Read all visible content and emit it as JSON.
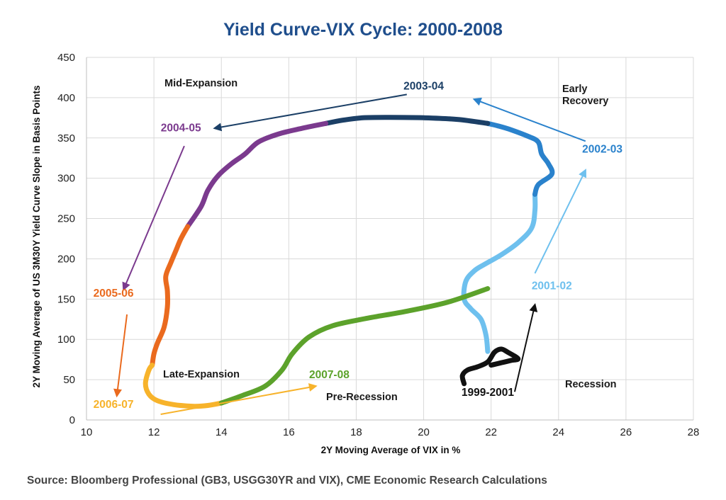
{
  "chart_data": {
    "type": "line",
    "title": "Yield Curve-VIX Cycle: 2000-2008",
    "xlabel": "2Y Moving Average of VIX in %",
    "ylabel": "2Y Moving Average of US 3M30Y Yield Curve Slope in Basis Points",
    "xlim": [
      10,
      28
    ],
    "ylim": [
      0,
      450
    ],
    "x_ticks": [
      "10",
      "12",
      "14",
      "16",
      "18",
      "20",
      "22",
      "24",
      "26",
      "28"
    ],
    "y_ticks": [
      "0",
      "50",
      "100",
      "150",
      "200",
      "250",
      "300",
      "350",
      "400",
      "450"
    ],
    "grid": true,
    "source": "Source: Bloomberg Professional (GB3, USGG30YR and VIX), CME Economic Research Calculations",
    "phases": [
      "Mid-Expansion",
      "Early",
      "Recovery",
      "Late-Expansion",
      "Pre-Recession",
      "Recession"
    ],
    "colors": {
      "title": "#1f4e8c",
      "1999-2001": "#111111",
      "2001-02": "#6ec0ee",
      "2002-03": "#2a82cc",
      "2003-04": "#1b3f66",
      "2004-05": "#7b3a8e",
      "2005-06": "#ea6a1e",
      "2006-07": "#f7b32b",
      "2007-08": "#5ca22b"
    },
    "series": [
      {
        "name": "1999-2001",
        "points": [
          [
            21.2,
            45
          ],
          [
            21.15,
            55
          ],
          [
            21.3,
            62
          ],
          [
            21.6,
            66
          ],
          [
            21.9,
            72
          ],
          [
            22.1,
            84
          ],
          [
            22.3,
            88
          ],
          [
            22.5,
            84
          ],
          [
            22.8,
            76
          ],
          [
            22.6,
            74
          ],
          [
            22.3,
            71
          ],
          [
            22.0,
            68
          ]
        ]
      },
      {
        "name": "2001-02",
        "points": [
          [
            21.9,
            85
          ],
          [
            21.85,
            105
          ],
          [
            21.7,
            125
          ],
          [
            21.4,
            138
          ],
          [
            21.2,
            150
          ],
          [
            21.25,
            172
          ],
          [
            21.5,
            185
          ],
          [
            21.8,
            193
          ],
          [
            22.3,
            205
          ],
          [
            22.8,
            220
          ],
          [
            23.2,
            238
          ],
          [
            23.3,
            260
          ],
          [
            23.3,
            280
          ]
        ]
      },
      {
        "name": "2002-03",
        "points": [
          [
            23.3,
            280
          ],
          [
            23.4,
            292
          ],
          [
            23.8,
            305
          ],
          [
            23.7,
            318
          ],
          [
            23.5,
            330
          ],
          [
            23.4,
            345
          ],
          [
            23.1,
            352
          ],
          [
            22.6,
            360
          ],
          [
            22.2,
            365
          ],
          [
            21.9,
            368
          ]
        ]
      },
      {
        "name": "2003-04",
        "points": [
          [
            21.9,
            368
          ],
          [
            21.0,
            373
          ],
          [
            20.0,
            375
          ],
          [
            19.0,
            375.5
          ],
          [
            18.2,
            375
          ],
          [
            17.6,
            372
          ],
          [
            17.1,
            368
          ]
        ]
      },
      {
        "name": "2004-05",
        "points": [
          [
            17.1,
            368
          ],
          [
            16.4,
            362
          ],
          [
            15.7,
            355
          ],
          [
            15.1,
            345
          ],
          [
            14.7,
            330
          ],
          [
            14.3,
            318
          ],
          [
            13.9,
            303
          ],
          [
            13.6,
            285
          ],
          [
            13.4,
            265
          ],
          [
            13.0,
            240
          ]
        ]
      },
      {
        "name": "2005-06",
        "points": [
          [
            13.0,
            240
          ],
          [
            12.8,
            225
          ],
          [
            12.65,
            210
          ],
          [
            12.5,
            195
          ],
          [
            12.35,
            178
          ],
          [
            12.4,
            160
          ],
          [
            12.4,
            140
          ],
          [
            12.3,
            115
          ],
          [
            12.1,
            95
          ],
          [
            12.0,
            82
          ],
          [
            11.95,
            68
          ]
        ]
      },
      {
        "name": "2006-07",
        "points": [
          [
            11.95,
            68
          ],
          [
            11.85,
            62
          ],
          [
            11.75,
            45
          ],
          [
            11.85,
            32
          ],
          [
            12.1,
            24
          ],
          [
            12.6,
            19
          ],
          [
            13.2,
            17
          ],
          [
            13.6,
            18
          ],
          [
            14.0,
            21
          ]
        ]
      },
      {
        "name": "2007-08",
        "points": [
          [
            14.0,
            21
          ],
          [
            14.6,
            30
          ],
          [
            15.3,
            42
          ],
          [
            15.8,
            62
          ],
          [
            16.1,
            82
          ],
          [
            16.6,
            103
          ],
          [
            17.3,
            117
          ],
          [
            18.3,
            126
          ],
          [
            19.5,
            135
          ],
          [
            20.7,
            146
          ],
          [
            21.9,
            163
          ]
        ]
      }
    ],
    "annotations": [
      {
        "text": "2003-04",
        "x": 20.0,
        "y": 410,
        "arrow_from": [
          19.5,
          404
        ],
        "arrow_to": [
          13.8,
          362
        ]
      },
      {
        "text": "2002-03",
        "x": 25.3,
        "y": 332,
        "arrow_from": [
          24.8,
          346
        ],
        "arrow_to": [
          21.5,
          398
        ]
      },
      {
        "text": "2004-05",
        "x": 12.8,
        "y": 358,
        "arrow_from": [
          12.9,
          340
        ],
        "arrow_to": [
          11.1,
          162
        ]
      },
      {
        "text": "2005-06",
        "x": 10.8,
        "y": 153,
        "arrow_from": [
          11.2,
          131
        ],
        "arrow_to": [
          10.9,
          30
        ]
      },
      {
        "text": "2006-07",
        "x": 10.8,
        "y": 15,
        "arrow_from": [
          12.2,
          7
        ],
        "arrow_to": [
          16.8,
          42
        ]
      },
      {
        "text": "2007-08",
        "x": 17.2,
        "y": 52
      },
      {
        "text": "2001-02",
        "x": 23.8,
        "y": 162,
        "arrow_from": [
          23.3,
          182
        ],
        "arrow_to": [
          24.8,
          310
        ]
      },
      {
        "text": "1999-2001",
        "x": 21.9,
        "y": 30,
        "arrow_from": [
          22.7,
          35
        ],
        "arrow_to": [
          23.3,
          143
        ]
      }
    ]
  }
}
